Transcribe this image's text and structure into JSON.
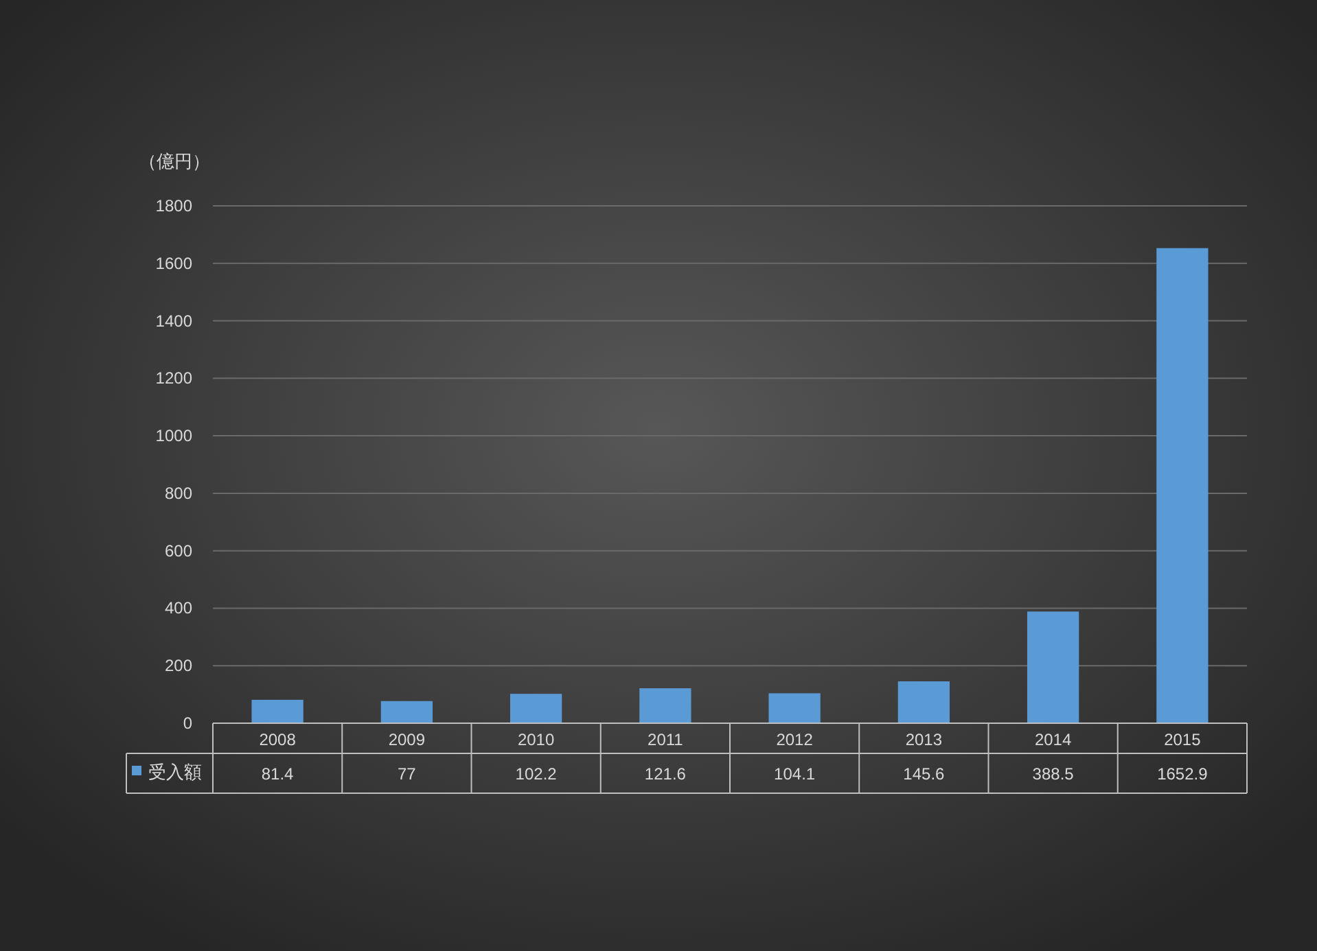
{
  "chart_data": {
    "type": "bar",
    "ylabel": "（億円）",
    "categories": [
      "2008",
      "2009",
      "2010",
      "2011",
      "2012",
      "2013",
      "2014",
      "2015"
    ],
    "series": [
      {
        "name": "受入額",
        "color": "#5b9bd5",
        "values": [
          81.4,
          77,
          102.2,
          121.6,
          104.1,
          145.6,
          388.5,
          1652.9
        ]
      }
    ],
    "ylim": [
      0,
      1800
    ],
    "yticks": [
      0,
      200,
      400,
      600,
      800,
      1000,
      1200,
      1400,
      1600,
      1800
    ],
    "grid": "y",
    "legend": "bottom",
    "data_labels": true
  }
}
